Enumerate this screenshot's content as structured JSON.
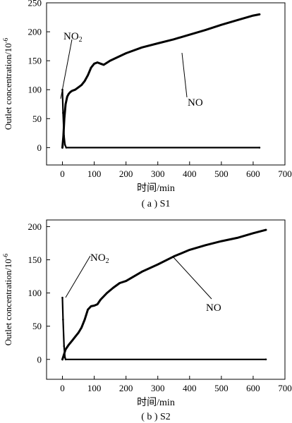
{
  "chart_data": [
    {
      "type": "line",
      "caption": "( a ) S1",
      "xlabel": "时间/min",
      "ylabel": "Outlet concentration/10",
      "ylabel_exponent": "-6",
      "xlim": [
        -50,
        700
      ],
      "ylim": [
        -30,
        250
      ],
      "xticks": [
        0,
        100,
        200,
        300,
        400,
        500,
        600,
        700
      ],
      "yticks": [
        0,
        50,
        100,
        150,
        200,
        250
      ],
      "grid": false,
      "series": [
        {
          "name": "NO",
          "x": [
            0,
            3,
            6,
            10,
            15,
            20,
            25,
            30,
            40,
            50,
            60,
            70,
            80,
            90,
            100,
            110,
            120,
            130,
            150,
            200,
            250,
            300,
            350,
            400,
            450,
            500,
            550,
            600,
            620
          ],
          "y": [
            0,
            20,
            50,
            75,
            88,
            93,
            96,
            98,
            100,
            104,
            108,
            115,
            125,
            138,
            145,
            147,
            145,
            143,
            150,
            163,
            173,
            180,
            187,
            195,
            203,
            212,
            220,
            228,
            230
          ]
        },
        {
          "name": "NO2",
          "x": [
            0,
            2,
            5,
            8,
            12,
            620
          ],
          "y": [
            100,
            60,
            20,
            5,
            0,
            0
          ]
        }
      ],
      "annotations": [
        {
          "label": "NO",
          "sub": ""
        },
        {
          "label": "NO",
          "sub": "2"
        }
      ]
    },
    {
      "type": "line",
      "caption": "( b ) S2",
      "xlabel": "时间/min",
      "ylabel": "Outlet concentration/10",
      "ylabel_exponent": "-6",
      "xlim": [
        -50,
        700
      ],
      "ylim": [
        -30,
        210
      ],
      "xticks": [
        0,
        100,
        200,
        300,
        400,
        500,
        600,
        700
      ],
      "yticks": [
        0,
        50,
        100,
        150,
        200
      ],
      "grid": false,
      "series": [
        {
          "name": "NO",
          "x": [
            0,
            10,
            20,
            30,
            40,
            50,
            60,
            70,
            80,
            90,
            100,
            110,
            120,
            140,
            160,
            180,
            200,
            250,
            300,
            350,
            400,
            450,
            500,
            550,
            600,
            640
          ],
          "y": [
            0,
            15,
            22,
            28,
            34,
            40,
            48,
            60,
            75,
            80,
            81,
            83,
            90,
            100,
            108,
            115,
            118,
            132,
            143,
            155,
            165,
            172,
            178,
            183,
            190,
            195
          ]
        },
        {
          "name": "NO2",
          "x": [
            0,
            2,
            5,
            8,
            10,
            640
          ],
          "y": [
            93,
            60,
            20,
            3,
            0,
            0
          ]
        }
      ],
      "annotations": [
        {
          "label": "NO",
          "sub": "2"
        },
        {
          "label": "NO",
          "sub": ""
        }
      ]
    }
  ]
}
